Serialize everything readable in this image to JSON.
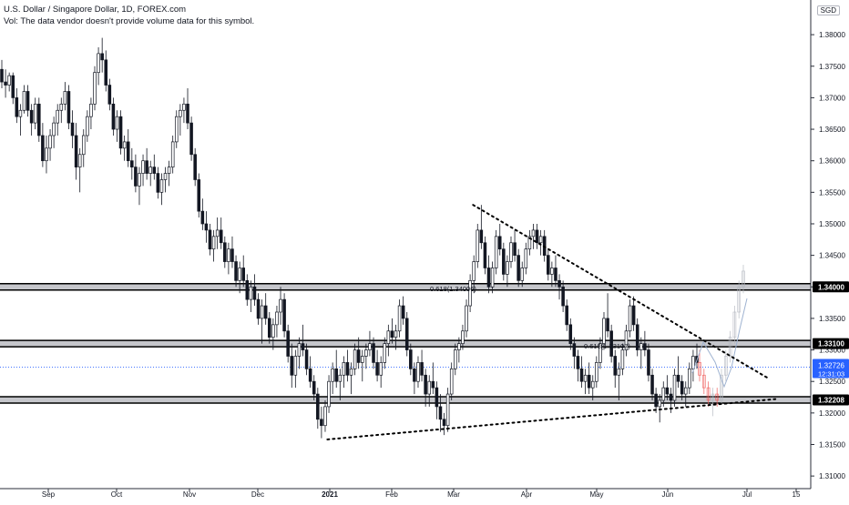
{
  "header": {
    "title": "U.S. Dollar / Singapore Dollar, 1D, FOREX.com",
    "volume_note": "Vol: The data vendor doesn't provide volume data for this symbol."
  },
  "currency_badge": "SGD",
  "colors": {
    "up": "#26a69a",
    "down": "#131722",
    "candle": "#131722",
    "band": "#9598a1",
    "price_label_bg": "#000000",
    "current_label_bg": "#2962ff",
    "projection": "#b2b5be",
    "projection_red": "#ef5350"
  },
  "chart_data": {
    "type": "candlestick",
    "symbol": "U.S. Dollar / Singapore Dollar",
    "interval": "1D",
    "source": "FOREX.com",
    "x_ticks": [
      "Sep",
      "Oct",
      "Nov",
      "Dec",
      "2021",
      "Feb",
      "Mar",
      "Apr",
      "May",
      "Jun",
      "Jul",
      "15"
    ],
    "y_ticks": [
      "1.38000",
      "1.37500",
      "1.37000",
      "1.36500",
      "1.36000",
      "1.35500",
      "1.35000",
      "1.34500",
      "1.34000",
      "1.33500",
      "1.33000",
      "1.32500",
      "1.32000",
      "1.31500",
      "1.31000"
    ],
    "ylim": [
      1.308,
      1.3855
    ],
    "horizontal_levels": [
      {
        "price": 1.34,
        "label": "1.34000"
      },
      {
        "price": 1.331,
        "label": "1.33100"
      },
      {
        "price": 1.32208,
        "label": "1.32208"
      }
    ],
    "current_price": {
      "value": "1.32726",
      "countdown": "12:31:03"
    },
    "fib_annotations": [
      "0.618(1.34006)",
      "0.618(1.33107)"
    ],
    "trendlines": [
      {
        "name": "descending-resistance",
        "from": [
          "2021-03-09",
          1.353
        ],
        "to": [
          "2021-07-10",
          1.3255
        ]
      },
      {
        "name": "ascending-support",
        "from": [
          "2020-12-30",
          1.3158
        ],
        "to": [
          "2021-07-13",
          1.3222
        ]
      }
    ],
    "candles": [
      [
        1.3745,
        1.376,
        1.3715,
        1.3725
      ],
      [
        1.3725,
        1.3745,
        1.37,
        1.372
      ],
      [
        1.372,
        1.374,
        1.371,
        1.3735
      ],
      [
        1.3735,
        1.374,
        1.369,
        1.37
      ],
      [
        1.37,
        1.3715,
        1.366,
        1.367
      ],
      [
        1.367,
        1.369,
        1.364,
        1.368
      ],
      [
        1.368,
        1.372,
        1.3675,
        1.371
      ],
      [
        1.371,
        1.372,
        1.367,
        1.368
      ],
      [
        1.368,
        1.369,
        1.364,
        1.366
      ],
      [
        1.366,
        1.37,
        1.365,
        1.369
      ],
      [
        1.369,
        1.37,
        1.363,
        1.364
      ],
      [
        1.364,
        1.366,
        1.359,
        1.36
      ],
      [
        1.36,
        1.364,
        1.358,
        1.362
      ],
      [
        1.362,
        1.365,
        1.36,
        1.364
      ],
      [
        1.364,
        1.367,
        1.362,
        1.366
      ],
      [
        1.366,
        1.369,
        1.364,
        1.368
      ],
      [
        1.368,
        1.37,
        1.366,
        1.369
      ],
      [
        1.369,
        1.3725,
        1.368,
        1.371
      ],
      [
        1.371,
        1.372,
        1.365,
        1.366
      ],
      [
        1.366,
        1.368,
        1.362,
        1.364
      ],
      [
        1.364,
        1.366,
        1.357,
        1.359
      ],
      [
        1.359,
        1.362,
        1.355,
        1.361
      ],
      [
        1.361,
        1.365,
        1.359,
        1.364
      ],
      [
        1.364,
        1.368,
        1.363,
        1.367
      ],
      [
        1.367,
        1.37,
        1.365,
        1.369
      ],
      [
        1.369,
        1.375,
        1.368,
        1.374
      ],
      [
        1.374,
        1.378,
        1.372,
        1.377
      ],
      [
        1.377,
        1.3795,
        1.374,
        1.376
      ],
      [
        1.376,
        1.3775,
        1.371,
        1.372
      ],
      [
        1.372,
        1.373,
        1.368,
        1.369
      ],
      [
        1.369,
        1.37,
        1.364,
        1.365
      ],
      [
        1.365,
        1.368,
        1.363,
        1.367
      ],
      [
        1.367,
        1.368,
        1.361,
        1.362
      ],
      [
        1.362,
        1.364,
        1.36,
        1.363
      ],
      [
        1.363,
        1.365,
        1.359,
        1.36
      ],
      [
        1.36,
        1.362,
        1.357,
        1.359
      ],
      [
        1.359,
        1.361,
        1.355,
        1.356
      ],
      [
        1.356,
        1.359,
        1.353,
        1.358
      ],
      [
        1.358,
        1.361,
        1.356,
        1.36
      ],
      [
        1.36,
        1.362,
        1.357,
        1.358
      ],
      [
        1.358,
        1.36,
        1.356,
        1.359
      ],
      [
        1.359,
        1.361,
        1.357,
        1.358
      ],
      [
        1.358,
        1.359,
        1.354,
        1.355
      ],
      [
        1.355,
        1.358,
        1.353,
        1.357
      ],
      [
        1.357,
        1.359,
        1.355,
        1.358
      ],
      [
        1.358,
        1.36,
        1.356,
        1.359
      ],
      [
        1.359,
        1.364,
        1.358,
        1.363
      ],
      [
        1.363,
        1.368,
        1.362,
        1.367
      ],
      [
        1.367,
        1.369,
        1.364,
        1.368
      ],
      [
        1.368,
        1.37,
        1.366,
        1.369
      ],
      [
        1.369,
        1.3715,
        1.365,
        1.366
      ],
      [
        1.366,
        1.367,
        1.36,
        1.361
      ],
      [
        1.361,
        1.362,
        1.356,
        1.357
      ],
      [
        1.357,
        1.358,
        1.351,
        1.352
      ],
      [
        1.352,
        1.354,
        1.349,
        1.35
      ],
      [
        1.35,
        1.352,
        1.347,
        1.349
      ],
      [
        1.349,
        1.35,
        1.345,
        1.346
      ],
      [
        1.346,
        1.349,
        1.344,
        1.348
      ],
      [
        1.348,
        1.351,
        1.346,
        1.349
      ],
      [
        1.349,
        1.351,
        1.346,
        1.347
      ],
      [
        1.347,
        1.348,
        1.343,
        1.344
      ],
      [
        1.344,
        1.347,
        1.342,
        1.346
      ],
      [
        1.346,
        1.348,
        1.343,
        1.344
      ],
      [
        1.344,
        1.345,
        1.34,
        1.341
      ],
      [
        1.341,
        1.344,
        1.339,
        1.343
      ],
      [
        1.343,
        1.345,
        1.34,
        1.341
      ],
      [
        1.341,
        1.342,
        1.337,
        1.338
      ],
      [
        1.338,
        1.341,
        1.336,
        1.34
      ],
      [
        1.34,
        1.342,
        1.337,
        1.338
      ],
      [
        1.338,
        1.339,
        1.334,
        1.335
      ],
      [
        1.335,
        1.338,
        1.331,
        1.337
      ],
      [
        1.337,
        1.339,
        1.334,
        1.335
      ],
      [
        1.335,
        1.336,
        1.331,
        1.332
      ],
      [
        1.332,
        1.335,
        1.33,
        1.334
      ],
      [
        1.334,
        1.337,
        1.332,
        1.336
      ],
      [
        1.336,
        1.34,
        1.334,
        1.338
      ],
      [
        1.338,
        1.339,
        1.332,
        1.333
      ],
      [
        1.333,
        1.334,
        1.328,
        1.329
      ],
      [
        1.329,
        1.331,
        1.324,
        1.326
      ],
      [
        1.326,
        1.33,
        1.324,
        1.329
      ],
      [
        1.329,
        1.332,
        1.327,
        1.331
      ],
      [
        1.331,
        1.334,
        1.329,
        1.33
      ],
      [
        1.33,
        1.331,
        1.326,
        1.327
      ],
      [
        1.327,
        1.329,
        1.324,
        1.325
      ],
      [
        1.325,
        1.326,
        1.322,
        1.323
      ],
      [
        1.323,
        1.324,
        1.3175,
        1.319
      ],
      [
        1.319,
        1.321,
        1.316,
        1.318
      ],
      [
        1.318,
        1.322,
        1.317,
        1.321
      ],
      [
        1.321,
        1.326,
        1.32,
        1.325
      ],
      [
        1.325,
        1.328,
        1.323,
        1.327
      ],
      [
        1.327,
        1.33,
        1.324,
        1.325
      ],
      [
        1.325,
        1.327,
        1.322,
        1.326
      ],
      [
        1.326,
        1.329,
        1.324,
        1.328
      ],
      [
        1.328,
        1.33,
        1.325,
        1.326
      ],
      [
        1.326,
        1.328,
        1.323,
        1.327
      ],
      [
        1.327,
        1.331,
        1.326,
        1.33
      ],
      [
        1.33,
        1.332,
        1.327,
        1.328
      ],
      [
        1.328,
        1.33,
        1.325,
        1.329
      ],
      [
        1.329,
        1.331,
        1.327,
        1.33
      ],
      [
        1.33,
        1.333,
        1.329,
        1.331
      ],
      [
        1.331,
        1.332,
        1.327,
        1.328
      ],
      [
        1.328,
        1.33,
        1.325,
        1.326
      ],
      [
        1.326,
        1.329,
        1.324,
        1.328
      ],
      [
        1.328,
        1.332,
        1.327,
        1.331
      ],
      [
        1.331,
        1.334,
        1.329,
        1.333
      ],
      [
        1.333,
        1.335,
        1.331,
        1.332
      ],
      [
        1.332,
        1.334,
        1.33,
        1.333
      ],
      [
        1.333,
        1.338,
        1.332,
        1.337
      ],
      [
        1.337,
        1.3385,
        1.334,
        1.335
      ],
      [
        1.335,
        1.336,
        1.329,
        1.33
      ],
      [
        1.33,
        1.331,
        1.326,
        1.327
      ],
      [
        1.327,
        1.328,
        1.323,
        1.325
      ],
      [
        1.325,
        1.329,
        1.324,
        1.328
      ],
      [
        1.328,
        1.33,
        1.325,
        1.326
      ],
      [
        1.326,
        1.327,
        1.321,
        1.323
      ],
      [
        1.323,
        1.326,
        1.321,
        1.325
      ],
      [
        1.325,
        1.328,
        1.323,
        1.324
      ],
      [
        1.324,
        1.325,
        1.319,
        1.321
      ],
      [
        1.321,
        1.323,
        1.317,
        1.319
      ],
      [
        1.319,
        1.32,
        1.3165,
        1.318
      ],
      [
        1.318,
        1.324,
        1.317,
        1.323
      ],
      [
        1.323,
        1.328,
        1.322,
        1.327
      ],
      [
        1.327,
        1.331,
        1.326,
        1.33
      ],
      [
        1.33,
        1.332,
        1.328,
        1.331
      ],
      [
        1.331,
        1.334,
        1.33,
        1.333
      ],
      [
        1.333,
        1.338,
        1.332,
        1.337
      ],
      [
        1.337,
        1.342,
        1.336,
        1.341
      ],
      [
        1.341,
        1.345,
        1.339,
        1.344
      ],
      [
        1.344,
        1.35,
        1.343,
        1.349
      ],
      [
        1.349,
        1.353,
        1.346,
        1.347
      ],
      [
        1.347,
        1.348,
        1.342,
        1.343
      ],
      [
        1.343,
        1.345,
        1.339,
        1.34
      ],
      [
        1.34,
        1.344,
        1.339,
        1.343
      ],
      [
        1.343,
        1.349,
        1.342,
        1.348
      ],
      [
        1.348,
        1.35,
        1.345,
        1.346
      ],
      [
        1.346,
        1.347,
        1.341,
        1.342
      ],
      [
        1.342,
        1.345,
        1.34,
        1.344
      ],
      [
        1.344,
        1.348,
        1.343,
        1.347
      ],
      [
        1.347,
        1.349,
        1.344,
        1.345
      ],
      [
        1.345,
        1.346,
        1.34,
        1.341
      ],
      [
        1.341,
        1.344,
        1.34,
        1.343
      ],
      [
        1.343,
        1.347,
        1.342,
        1.346
      ],
      [
        1.346,
        1.349,
        1.345,
        1.348
      ],
      [
        1.348,
        1.35,
        1.346,
        1.349
      ],
      [
        1.349,
        1.35,
        1.346,
        1.347
      ],
      [
        1.347,
        1.349,
        1.345,
        1.348
      ],
      [
        1.348,
        1.349,
        1.344,
        1.345
      ],
      [
        1.345,
        1.346,
        1.341,
        1.342
      ],
      [
        1.342,
        1.344,
        1.34,
        1.343
      ],
      [
        1.343,
        1.345,
        1.34,
        1.341
      ],
      [
        1.341,
        1.342,
        1.338,
        1.34
      ],
      [
        1.34,
        1.341,
        1.336,
        1.337
      ],
      [
        1.337,
        1.338,
        1.333,
        1.334
      ],
      [
        1.334,
        1.335,
        1.33,
        1.331
      ],
      [
        1.331,
        1.332,
        1.327,
        1.329
      ],
      [
        1.329,
        1.33,
        1.325,
        1.327
      ],
      [
        1.327,
        1.329,
        1.324,
        1.325
      ],
      [
        1.325,
        1.327,
        1.323,
        1.326
      ],
      [
        1.326,
        1.328,
        1.323,
        1.324
      ],
      [
        1.324,
        1.326,
        1.322,
        1.325
      ],
      [
        1.325,
        1.329,
        1.324,
        1.328
      ],
      [
        1.328,
        1.332,
        1.327,
        1.331
      ],
      [
        1.331,
        1.336,
        1.33,
        1.335
      ],
      [
        1.335,
        1.339,
        1.332,
        1.333
      ],
      [
        1.333,
        1.334,
        1.328,
        1.329
      ],
      [
        1.329,
        1.33,
        1.324,
        1.326
      ],
      [
        1.326,
        1.328,
        1.322,
        1.327
      ],
      [
        1.327,
        1.331,
        1.326,
        1.33
      ],
      [
        1.33,
        1.334,
        1.329,
        1.333
      ],
      [
        1.333,
        1.338,
        1.332,
        1.337
      ],
      [
        1.337,
        1.3385,
        1.333,
        1.334
      ],
      [
        1.334,
        1.335,
        1.329,
        1.33
      ],
      [
        1.33,
        1.332,
        1.327,
        1.331
      ],
      [
        1.331,
        1.333,
        1.329,
        1.33
      ],
      [
        1.33,
        1.331,
        1.325,
        1.326
      ],
      [
        1.326,
        1.327,
        1.322,
        1.323
      ],
      [
        1.323,
        1.324,
        1.32,
        1.321
      ],
      [
        1.321,
        1.323,
        1.3185,
        1.322
      ],
      [
        1.322,
        1.325,
        1.321,
        1.324
      ],
      [
        1.324,
        1.326,
        1.322,
        1.323
      ],
      [
        1.323,
        1.324,
        1.32,
        1.322
      ],
      [
        1.322,
        1.327,
        1.321,
        1.326
      ],
      [
        1.326,
        1.329,
        1.324,
        1.325
      ],
      [
        1.325,
        1.326,
        1.322,
        1.323
      ],
      [
        1.323,
        1.325,
        1.321,
        1.324
      ],
      [
        1.324,
        1.328,
        1.323,
        1.327
      ],
      [
        1.327,
        1.33,
        1.325,
        1.329
      ],
      [
        1.329,
        1.331,
        1.327,
        1.328
      ]
    ],
    "projection_candles": [
      [
        1.328,
        1.33,
        1.325,
        1.326
      ],
      [
        1.326,
        1.327,
        1.323,
        1.324
      ],
      [
        1.324,
        1.325,
        1.321,
        1.322
      ],
      [
        1.322,
        1.324,
        1.3195,
        1.323
      ],
      [
        1.323,
        1.324,
        1.321,
        1.322
      ],
      [
        1.322,
        1.327,
        1.3215,
        1.326
      ],
      [
        1.326,
        1.33,
        1.325,
        1.329
      ],
      [
        1.329,
        1.333,
        1.328,
        1.332
      ],
      [
        1.332,
        1.337,
        1.331,
        1.336
      ],
      [
        1.336,
        1.341,
        1.335,
        1.34
      ],
      [
        1.34,
        1.3435,
        1.339,
        1.3425
      ]
    ]
  }
}
